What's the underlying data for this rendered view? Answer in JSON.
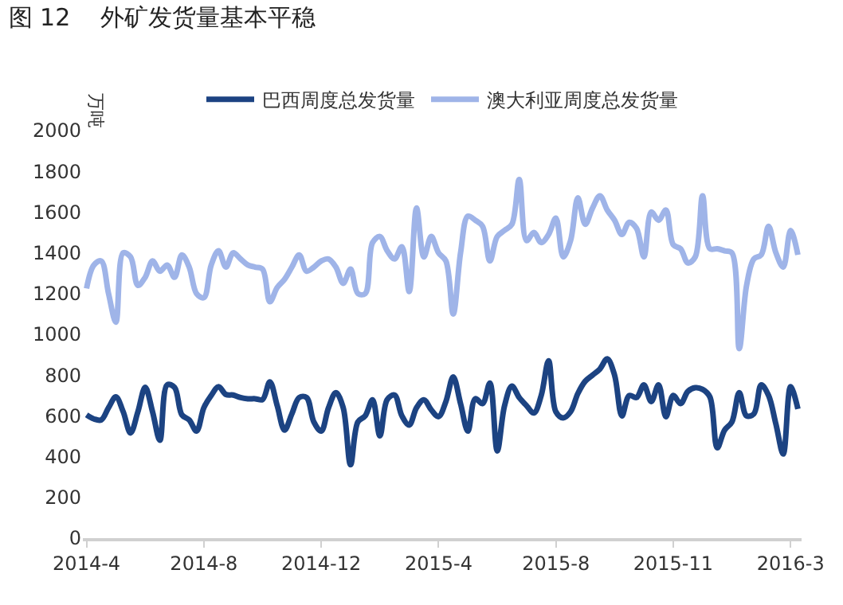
{
  "chart_data": {
    "type": "line",
    "title": "图 12    外矿发货量基本平稳",
    "ylabel": "万吨",
    "categories": [
      "2014-4",
      null,
      null,
      null,
      null,
      null,
      null,
      null,
      null,
      null,
      null,
      null,
      null,
      null,
      null,
      null,
      "2014-8",
      null,
      null,
      null,
      null,
      null,
      null,
      null,
      null,
      null,
      null,
      null,
      null,
      null,
      null,
      null,
      "2014-12",
      null,
      null,
      null,
      null,
      null,
      null,
      null,
      null,
      null,
      null,
      null,
      null,
      null,
      null,
      null,
      "2015-4",
      null,
      null,
      null,
      null,
      null,
      null,
      null,
      null,
      null,
      null,
      null,
      null,
      null,
      null,
      null,
      "2015-8",
      null,
      null,
      null,
      null,
      null,
      null,
      null,
      null,
      null,
      null,
      null,
      null,
      null,
      null,
      null,
      "2015-11",
      null,
      null,
      null,
      null,
      null,
      null,
      null,
      null,
      null,
      null,
      null,
      null,
      null,
      null,
      null,
      "2016-3",
      null
    ],
    "series": [
      {
        "name": "巴西周度总发货量",
        "color": "#1c4382",
        "values": [
          605,
          585,
          580,
          640,
          693,
          620,
          516,
          620,
          740,
          620,
          480,
          752,
          740,
          605,
          580,
          525,
          640,
          700,
          743,
          705,
          702,
          690,
          684,
          684,
          680,
          767,
          650,
          530,
          610,
          690,
          690,
          570,
          525,
          640,
          714,
          640,
          360,
          570,
          600,
          679,
          502,
          680,
          702,
          600,
          555,
          640,
          679,
          630,
          596,
          670,
          791,
          660,
          525,
          684,
          660,
          761,
          428,
          650,
          746,
          690,
          650,
          614,
          700,
          870,
          620,
          590,
          620,
          710,
          770,
          800,
          830,
          880,
          800,
          600,
          700,
          690,
          752,
          670,
          752,
          596,
          700,
          660,
          720,
          738,
          730,
          693,
          443,
          530,
          570,
          714,
          600,
          610,
          752,
          700,
          560,
          413,
          743,
          634
        ]
      },
      {
        "name": "澳大利亚周度总发货量",
        "color": "#9fb4e8",
        "values": [
          1225,
          1340,
          1360,
          1200,
          1060,
          1400,
          1380,
          1240,
          1280,
          1360,
          1310,
          1340,
          1280,
          1390,
          1330,
          1200,
          1180,
          1340,
          1410,
          1330,
          1400,
          1370,
          1340,
          1330,
          1320,
          1160,
          1230,
          1270,
          1330,
          1390,
          1310,
          1330,
          1360,
          1370,
          1330,
          1250,
          1320,
          1200,
          1200,
          1450,
          1480,
          1410,
          1370,
          1430,
          1210,
          1620,
          1380,
          1480,
          1400,
          1360,
          1100,
          1400,
          1580,
          1560,
          1530,
          1360,
          1480,
          1510,
          1540,
          1760,
          1460,
          1500,
          1450,
          1490,
          1570,
          1380,
          1460,
          1670,
          1540,
          1620,
          1680,
          1610,
          1560,
          1490,
          1550,
          1520,
          1380,
          1600,
          1560,
          1610,
          1440,
          1420,
          1350,
          1380,
          1680,
          1420,
          1420,
          1410,
          1400,
          930,
          1240,
          1370,
          1390,
          1530,
          1400,
          1330,
          1510,
          1390
        ]
      }
    ],
    "ylim": [
      0,
      2000
    ],
    "yticks": [
      0,
      200,
      400,
      600,
      800,
      1000,
      1200,
      1400,
      1600,
      1800,
      2000
    ],
    "grid": false,
    "legend": "top",
    "marker": "none",
    "line_style": "solid"
  }
}
